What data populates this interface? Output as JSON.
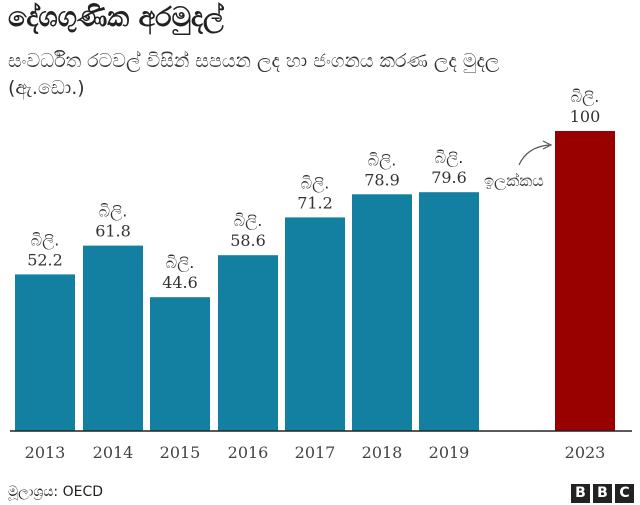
{
  "title": "දේශගුණික අරමුදල්",
  "subtitle": "සංවර්ධිත රටවල් විසින් සපයන ලද හා ජංගනය කරණ ලද මුදල (ඇ.ඩො.)",
  "source": "මූලාශ්‍රය: OECD",
  "logo": [
    "B",
    "B",
    "C"
  ],
  "target_label": "ඉලක්කය",
  "chart_data": {
    "type": "bar",
    "categories": [
      "2013",
      "2014",
      "2015",
      "2016",
      "2017",
      "2018",
      "2019",
      "2023"
    ],
    "values": [
      52.2,
      61.8,
      44.6,
      58.6,
      71.2,
      78.9,
      79.6,
      100
    ],
    "value_prefix": "බිලි.",
    "ylim": [
      0,
      115
    ],
    "grid": false,
    "colors": {
      "actual": "#1380A1",
      "target": "#990000",
      "baseline": "#222222"
    }
  }
}
